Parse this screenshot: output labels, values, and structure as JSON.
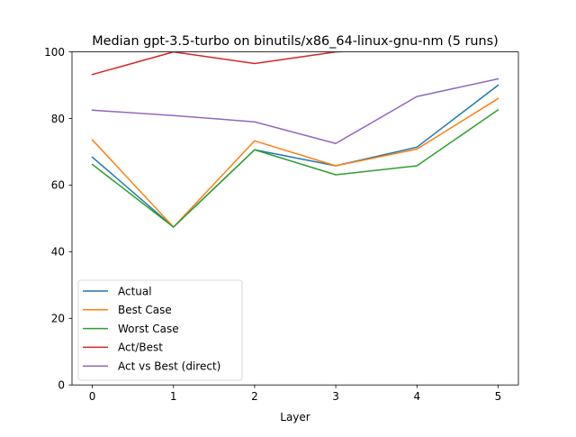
{
  "chart_data": {
    "type": "line",
    "title": "Median gpt-3.5-turbo on binutils/x86_64-linux-gnu-nm (5 runs)",
    "xlabel": "Layer",
    "ylabel": "",
    "x": [
      0,
      1,
      2,
      3,
      4,
      5
    ],
    "x_ticks": [
      0,
      1,
      2,
      3,
      4,
      5
    ],
    "xlim": [
      -0.25,
      5.25
    ],
    "ylim": [
      0,
      100
    ],
    "y_ticks": [
      0,
      20,
      40,
      60,
      80,
      100
    ],
    "grid": false,
    "legend_position": "lower-left",
    "series": [
      {
        "name": "Actual",
        "color": "#1f77b4",
        "values": [
          68.4,
          47.4,
          70.6,
          65.8,
          71.4,
          90.0
        ]
      },
      {
        "name": "Best Case",
        "color": "#ff7f0e",
        "values": [
          73.6,
          47.4,
          73.3,
          65.8,
          70.8,
          86.0
        ]
      },
      {
        "name": "Worst Case",
        "color": "#2ca02c",
        "values": [
          66.2,
          47.4,
          70.6,
          63.1,
          65.8,
          82.6
        ]
      },
      {
        "name": "Act/Best",
        "color": "#d62728",
        "values": [
          93.2,
          100.0,
          96.5,
          100.0,
          100.8,
          104.7
        ]
      },
      {
        "name": "Act vs Best (direct)",
        "color": "#9467bd",
        "values": [
          82.5,
          80.9,
          79.0,
          72.5,
          86.6,
          91.9
        ]
      }
    ]
  }
}
